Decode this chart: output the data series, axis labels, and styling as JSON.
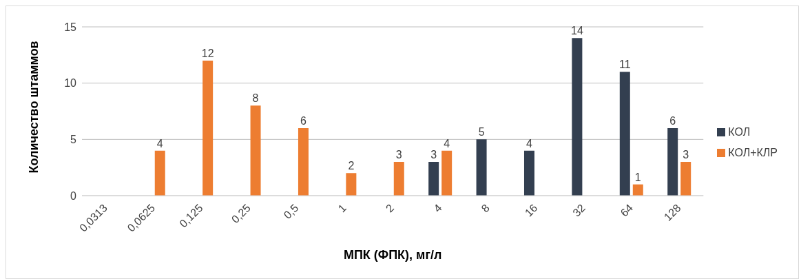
{
  "chart_data": {
    "type": "bar",
    "xlabel": "МПК (ФПК), мг/л",
    "ylabel": "Количество штаммов",
    "categories": [
      "0,0313",
      "0,0625",
      "0,125",
      "0,25",
      "0,5",
      "1",
      "2",
      "4",
      "8",
      "16",
      "32",
      "64",
      "128"
    ],
    "series": [
      {
        "name": "КОЛ",
        "color": "#333f50",
        "values": [
          null,
          null,
          null,
          null,
          null,
          null,
          null,
          3,
          5,
          4,
          14,
          11,
          6
        ]
      },
      {
        "name": "КОЛ+КЛР",
        "color": "#ed7d31",
        "values": [
          null,
          4,
          12,
          8,
          6,
          2,
          3,
          4,
          null,
          null,
          null,
          1,
          3
        ]
      }
    ],
    "ylim": [
      0,
      15
    ],
    "yticks": [
      0,
      5,
      10,
      15
    ],
    "grid": "y",
    "legend": "right",
    "data_labels": true
  }
}
